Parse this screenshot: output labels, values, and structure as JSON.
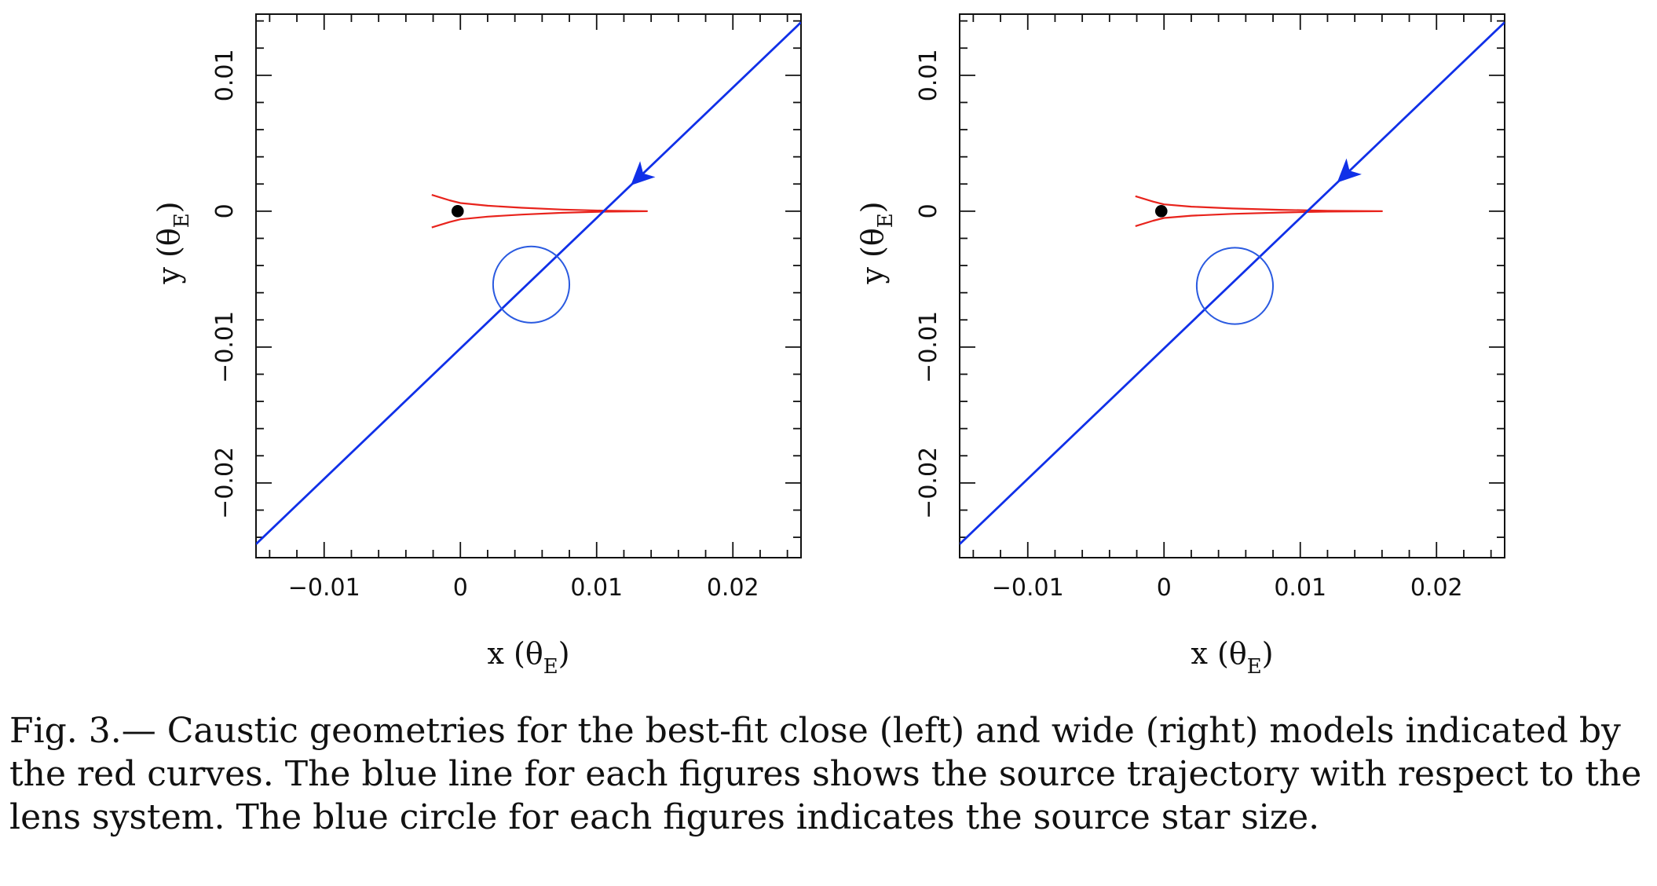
{
  "chart_data": [
    {
      "type": "line",
      "panel": "left",
      "xlabel": "x (θE)",
      "ylabel": "y (θE)",
      "xlabel_parts": {
        "base": "x (θ",
        "sub": "E",
        "close": ")"
      },
      "ylabel_parts": {
        "base": "y (θ",
        "sub": "E",
        "close": ")"
      },
      "xlim": [
        -0.015,
        0.025
      ],
      "ylim": [
        -0.0255,
        0.0145
      ],
      "x_ticks": [
        -0.01,
        0,
        0.01,
        0.02
      ],
      "x_tick_labels": [
        "−0.01",
        "0",
        "0.01",
        "0.02"
      ],
      "y_ticks": [
        -0.02,
        -0.01,
        0,
        0.01
      ],
      "y_tick_labels": [
        "−0.02",
        "−0.01",
        "0",
        "0.01"
      ],
      "grid": false,
      "series": [
        {
          "kind": "caustic",
          "color": "#e8231c",
          "x": [
            -0.0021,
            -0.0008,
            0.0,
            0.002,
            0.0045,
            0.0075,
            0.0105,
            0.0137,
            0.0105,
            0.0075,
            0.0045,
            0.002,
            0.0,
            -0.0008,
            -0.0021
          ],
          "y": [
            0.0012,
            0.0008,
            0.0006,
            0.0004,
            0.00025,
            0.00012,
            4e-05,
            0.0,
            -4e-05,
            -0.00012,
            -0.00025,
            -0.0004,
            -0.0006,
            -0.0008,
            -0.0012
          ]
        },
        {
          "kind": "trajectory",
          "color": "#1030e8",
          "x": [
            -0.015,
            0.025
          ],
          "y": [
            -0.0245,
            0.0139
          ],
          "arrow_at": [
            0.0125,
            0.0019
          ]
        },
        {
          "kind": "source",
          "color": "#2a5ae0",
          "center": [
            0.0052,
            -0.0054
          ],
          "radius": 0.0028
        },
        {
          "kind": "lens",
          "color": "#000000",
          "center": [
            -0.0002,
            0.0
          ],
          "radius": 0.00045
        }
      ]
    },
    {
      "type": "line",
      "panel": "right",
      "xlabel": "x (θE)",
      "ylabel": "y (θE)",
      "xlabel_parts": {
        "base": "x (θ",
        "sub": "E",
        "close": ")"
      },
      "ylabel_parts": {
        "base": "y (θ",
        "sub": "E",
        "close": ")"
      },
      "xlim": [
        -0.015,
        0.025
      ],
      "ylim": [
        -0.0255,
        0.0145
      ],
      "x_ticks": [
        -0.01,
        0,
        0.01,
        0.02
      ],
      "x_tick_labels": [
        "−0.01",
        "0",
        "0.01",
        "0.02"
      ],
      "y_ticks": [
        -0.02,
        -0.01,
        0,
        0.01
      ],
      "y_tick_labels": [
        "−0.02",
        "−0.01",
        "0",
        "0.01"
      ],
      "grid": false,
      "series": [
        {
          "kind": "caustic",
          "color": "#e8231c",
          "x": [
            -0.0021,
            -0.0008,
            0.0,
            0.002,
            0.005,
            0.0085,
            0.012,
            0.016,
            0.012,
            0.0085,
            0.005,
            0.002,
            0.0,
            -0.0008,
            -0.0021
          ],
          "y": [
            0.0011,
            0.0007,
            0.0005,
            0.00033,
            0.0002,
            0.0001,
            3e-05,
            0.0,
            -3e-05,
            -0.0001,
            -0.0002,
            -0.00033,
            -0.0005,
            -0.0007,
            -0.0011
          ]
        },
        {
          "kind": "trajectory",
          "color": "#1030e8",
          "x": [
            -0.015,
            0.025
          ],
          "y": [
            -0.0245,
            0.0139
          ],
          "arrow_at": [
            0.0127,
            0.0021
          ]
        },
        {
          "kind": "source",
          "color": "#2a5ae0",
          "center": [
            0.0052,
            -0.0055
          ],
          "radius": 0.0028
        },
        {
          "kind": "lens",
          "color": "#000000",
          "center": [
            -0.0002,
            0.0
          ],
          "radius": 0.00045
        }
      ]
    }
  ],
  "caption": "Fig. 3.— Caustic geometries for the best-fit close (left) and wide (right) models indicated by the red curves. The blue line for each figures shows the source trajectory with respect to the lens system. The blue circle for each figures indicates the source star size."
}
